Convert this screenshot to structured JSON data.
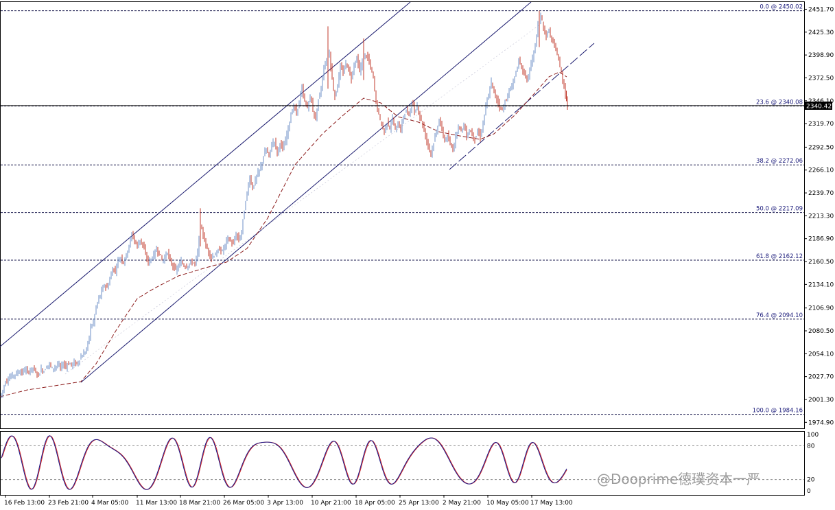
{
  "chart_data": {
    "type": "candlestick",
    "main_panel": {
      "y_ticks": [
        "2451.70",
        "2425.30",
        "2398.90",
        "2372.50",
        "2346.10",
        "2319.70",
        "2292.50",
        "2266.10",
        "2239.70",
        "2213.30",
        "2186.90",
        "2160.50",
        "2134.10",
        "2106.90",
        "2080.50",
        "2054.10",
        "2027.70",
        "2001.30",
        "1974.90"
      ],
      "ylim": [
        1968,
        2460
      ],
      "current_price": "2340.42",
      "fibonacci_levels": [
        {
          "label": "0.0 @ 2450.02",
          "price": 2450.02
        },
        {
          "label": "23.6 @ 2340.08",
          "price": 2340.08
        },
        {
          "label": "38.2 @ 2272.06",
          "price": 2272.06
        },
        {
          "label": "50.0 @ 2217.09",
          "price": 2217.09
        },
        {
          "label": "61.8 @ 2162.12",
          "price": 2162.12
        },
        {
          "label": "76.4 @ 2094.10",
          "price": 2094.1
        },
        {
          "label": "100.0 @ 1984.16",
          "price": 1984.16
        }
      ],
      "candle_close_path": [
        [
          0,
          2004
        ],
        [
          4,
          2012
        ],
        [
          8,
          2022
        ],
        [
          12,
          2025
        ],
        [
          16,
          2028
        ],
        [
          20,
          2030
        ],
        [
          24,
          2031
        ],
        [
          28,
          2034
        ],
        [
          32,
          2032
        ],
        [
          36,
          2036
        ],
        [
          40,
          2033
        ],
        [
          44,
          2035
        ],
        [
          48,
          2038
        ],
        [
          52,
          2032
        ],
        [
          56,
          2030
        ],
        [
          60,
          2036
        ],
        [
          64,
          2034
        ],
        [
          68,
          2040
        ],
        [
          72,
          2042
        ],
        [
          76,
          2037
        ],
        [
          80,
          2039
        ],
        [
          84,
          2041
        ],
        [
          88,
          2038
        ],
        [
          92,
          2042
        ],
        [
          96,
          2040
        ],
        [
          100,
          2043
        ],
        [
          104,
          2041
        ],
        [
          108,
          2044
        ],
        [
          112,
          2042
        ],
        [
          116,
          2048
        ],
        [
          120,
          2052
        ],
        [
          124,
          2056
        ],
        [
          128,
          2065
        ],
        [
          132,
          2085
        ],
        [
          136,
          2090
        ],
        [
          140,
          2108
        ],
        [
          144,
          2118
        ],
        [
          148,
          2126
        ],
        [
          152,
          2134
        ],
        [
          156,
          2130
        ],
        [
          160,
          2140
        ],
        [
          164,
          2152
        ],
        [
          168,
          2150
        ],
        [
          172,
          2162
        ],
        [
          176,
          2165
        ],
        [
          180,
          2160
        ],
        [
          184,
          2168
        ],
        [
          188,
          2180
        ],
        [
          192,
          2192
        ],
        [
          196,
          2185
        ],
        [
          200,
          2178
        ],
        [
          204,
          2186
        ],
        [
          208,
          2180
        ],
        [
          212,
          2168
        ],
        [
          216,
          2160
        ],
        [
          220,
          2163
        ],
        [
          224,
          2168
        ],
        [
          228,
          2175
        ],
        [
          232,
          2170
        ],
        [
          236,
          2162
        ],
        [
          240,
          2165
        ],
        [
          244,
          2172
        ],
        [
          248,
          2160
        ],
        [
          252,
          2156
        ],
        [
          256,
          2150
        ],
        [
          260,
          2155
        ],
        [
          264,
          2160
        ],
        [
          268,
          2156
        ],
        [
          272,
          2155
        ],
        [
          276,
          2158
        ],
        [
          280,
          2160
        ],
        [
          284,
          2158
        ],
        [
          288,
          2170
        ],
        [
          292,
          2200
        ],
        [
          296,
          2192
        ],
        [
          300,
          2178
        ],
        [
          304,
          2172
        ],
        [
          308,
          2165
        ],
        [
          312,
          2168
        ],
        [
          316,
          2170
        ],
        [
          320,
          2175
        ],
        [
          324,
          2172
        ],
        [
          328,
          2180
        ],
        [
          332,
          2188
        ],
        [
          336,
          2184
        ],
        [
          340,
          2180
        ],
        [
          344,
          2192
        ],
        [
          348,
          2185
        ],
        [
          352,
          2195
        ],
        [
          356,
          2220
        ],
        [
          360,
          2240
        ],
        [
          364,
          2258
        ],
        [
          368,
          2245
        ],
        [
          372,
          2255
        ],
        [
          376,
          2262
        ],
        [
          380,
          2270
        ],
        [
          384,
          2282
        ],
        [
          388,
          2290
        ],
        [
          392,
          2282
        ],
        [
          396,
          2296
        ],
        [
          400,
          2300
        ],
        [
          404,
          2285
        ],
        [
          408,
          2298
        ],
        [
          412,
          2290
        ],
        [
          416,
          2300
        ],
        [
          420,
          2315
        ],
        [
          424,
          2330
        ],
        [
          428,
          2340
        ],
        [
          432,
          2332
        ],
        [
          436,
          2345
        ],
        [
          440,
          2360
        ],
        [
          444,
          2345
        ],
        [
          448,
          2338
        ],
        [
          452,
          2352
        ],
        [
          456,
          2335
        ],
        [
          460,
          2325
        ],
        [
          464,
          2348
        ],
        [
          468,
          2360
        ],
        [
          472,
          2385
        ],
        [
          476,
          2392
        ],
        [
          480,
          2402
        ],
        [
          484,
          2370
        ],
        [
          488,
          2350
        ],
        [
          492,
          2365
        ],
        [
          496,
          2385
        ],
        [
          500,
          2378
        ],
        [
          504,
          2390
        ],
        [
          508,
          2382
        ],
        [
          512,
          2372
        ],
        [
          516,
          2388
        ],
        [
          520,
          2395
        ],
        [
          524,
          2380
        ],
        [
          528,
          2392
        ],
        [
          532,
          2400
        ],
        [
          536,
          2395
        ],
        [
          540,
          2385
        ],
        [
          544,
          2372
        ],
        [
          548,
          2345
        ],
        [
          552,
          2330
        ],
        [
          556,
          2318
        ],
        [
          560,
          2310
        ],
        [
          564,
          2322
        ],
        [
          568,
          2315
        ],
        [
          572,
          2325
        ],
        [
          576,
          2312
        ],
        [
          580,
          2320
        ],
        [
          584,
          2312
        ],
        [
          588,
          2328
        ],
        [
          592,
          2335
        ],
        [
          596,
          2330
        ],
        [
          600,
          2345
        ],
        [
          604,
          2332
        ],
        [
          608,
          2340
        ],
        [
          612,
          2328
        ],
        [
          616,
          2318
        ],
        [
          620,
          2305
        ],
        [
          624,
          2295
        ],
        [
          628,
          2285
        ],
        [
          632,
          2298
        ],
        [
          636,
          2310
        ],
        [
          640,
          2325
        ],
        [
          644,
          2312
        ],
        [
          648,
          2300
        ],
        [
          652,
          2305
        ],
        [
          656,
          2295
        ],
        [
          660,
          2290
        ],
        [
          664,
          2305
        ],
        [
          668,
          2318
        ],
        [
          672,
          2312
        ],
        [
          676,
          2318
        ],
        [
          680,
          2305
        ],
        [
          684,
          2312
        ],
        [
          688,
          2308
        ],
        [
          692,
          2302
        ],
        [
          696,
          2310
        ],
        [
          700,
          2305
        ],
        [
          704,
          2320
        ],
        [
          708,
          2340
        ],
        [
          712,
          2352
        ],
        [
          716,
          2368
        ],
        [
          720,
          2355
        ],
        [
          724,
          2348
        ],
        [
          728,
          2340
        ],
        [
          732,
          2335
        ],
        [
          736,
          2345
        ],
        [
          740,
          2352
        ],
        [
          744,
          2360
        ],
        [
          748,
          2368
        ],
        [
          752,
          2380
        ],
        [
          756,
          2392
        ],
        [
          760,
          2385
        ],
        [
          764,
          2378
        ],
        [
          768,
          2370
        ],
        [
          772,
          2382
        ],
        [
          776,
          2395
        ],
        [
          780,
          2410
        ],
        [
          784,
          2432
        ],
        [
          788,
          2445
        ],
        [
          792,
          2430
        ],
        [
          796,
          2420
        ],
        [
          800,
          2428
        ],
        [
          804,
          2415
        ],
        [
          808,
          2410
        ],
        [
          812,
          2400
        ],
        [
          816,
          2385
        ],
        [
          820,
          2370
        ],
        [
          824,
          2355
        ],
        [
          827,
          2340
        ]
      ]
    },
    "oscillator_panel": {
      "y_ticks": [
        "100",
        "80",
        "20",
        "0"
      ],
      "ylim": [
        0,
        100
      ]
    },
    "x_ticks": [
      "16 Feb 13:00",
      "23 Feb 21:00",
      "4 Mar 05:00",
      "11 Mar 13:00",
      "18 Mar 21:00",
      "26 Mar 05:00",
      "3 Apr 13:00",
      "10 Apr 21:00",
      "18 Apr 05:00",
      "25 Apr 13:00",
      "2 May 21:00",
      "10 May 05:00",
      "17 May 13:00"
    ],
    "colors": {
      "bull": "#6d8fc7",
      "bear": "#c0392b",
      "channel": "#1a1a6e",
      "ma": "#8b1a1a",
      "fib": "#1a1a4e",
      "osc_main": "#1a1a8a",
      "osc_signal": "#d12020"
    }
  },
  "watermark": "@Dooprime德璞资本一严"
}
